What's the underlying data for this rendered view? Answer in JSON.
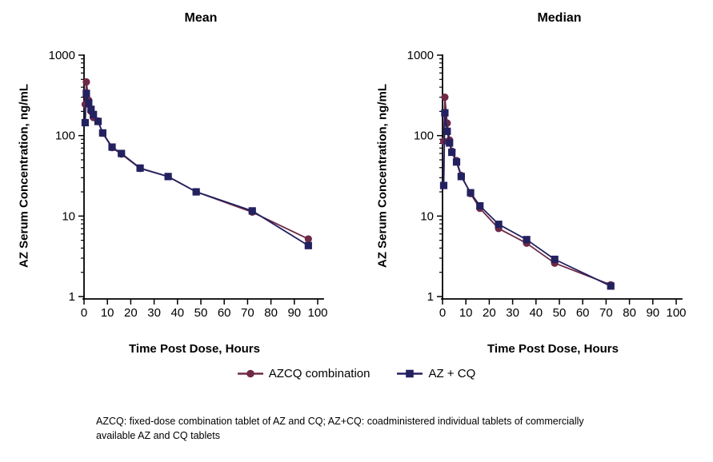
{
  "figure": {
    "ylabel": "AZ Serum Concentration, ng/mL",
    "xlabel": "Time Post Dose, Hours",
    "footnote": [
      "AZCQ: fixed-dose combination tablet of AZ and CQ; AZ+CQ: coadministered individual tablets of commercially",
      "available AZ and CQ tablets"
    ],
    "background_color": "#ffffff",
    "text_color": "#000000"
  },
  "legend": {
    "position": "bottom-center",
    "items": [
      {
        "label": "AZCQ combination",
        "marker": "circle",
        "color": "#6e2946"
      },
      {
        "label": "AZ + CQ",
        "marker": "square",
        "color": "#23215f"
      }
    ]
  },
  "chart_data": [
    {
      "type": "line",
      "title": "Mean",
      "xlabel": "Time Post Dose, Hours",
      "ylabel": "AZ Serum Concentration, ng/mL",
      "yscale": "log",
      "xlim": [
        0,
        100
      ],
      "ylim": [
        1,
        1000
      ],
      "x_ticks": [
        0,
        10,
        20,
        30,
        40,
        50,
        60,
        70,
        80,
        90,
        100
      ],
      "y_ticks": [
        1,
        10,
        100,
        1000
      ],
      "grid": false,
      "series": [
        {
          "name": "AZCQ combination",
          "marker": "circle",
          "color": "#6e2946",
          "x": [
            0.5,
            1,
            2,
            3,
            4,
            6,
            8,
            12,
            16,
            24,
            36,
            48,
            72,
            96
          ],
          "y": [
            245,
            465,
            275,
            200,
            168,
            152,
            107,
            71,
            59,
            39,
            31,
            20,
            11.2,
            5.2
          ]
        },
        {
          "name": "AZ + CQ",
          "marker": "square",
          "color": "#23215f",
          "x": [
            0.5,
            1,
            2,
            3,
            4,
            6,
            8,
            12,
            16,
            24,
            36,
            48,
            72,
            96
          ],
          "y": [
            145,
            335,
            255,
            212,
            183,
            150,
            108,
            72,
            60,
            39.5,
            31,
            20,
            11.6,
            4.3
          ]
        }
      ]
    },
    {
      "type": "line",
      "title": "Median",
      "xlabel": "Time Post Dose, Hours",
      "ylabel": "AZ Serum Concentration, ng/mL",
      "yscale": "log",
      "xlim": [
        0,
        100
      ],
      "ylim": [
        1,
        1000
      ],
      "x_ticks": [
        0,
        10,
        20,
        30,
        40,
        50,
        60,
        70,
        80,
        90,
        100
      ],
      "y_ticks": [
        1,
        10,
        100,
        1000
      ],
      "grid": false,
      "series": [
        {
          "name": "AZCQ combination",
          "marker": "circle",
          "color": "#6e2946",
          "x": [
            0.5,
            1,
            2,
            3,
            4,
            6,
            8,
            12,
            16,
            24,
            36,
            48,
            72
          ],
          "y": [
            85,
            300,
            143,
            88,
            64,
            49,
            32,
            19,
            12.5,
            7,
            4.6,
            2.6,
            1.4
          ]
        },
        {
          "name": "AZ + CQ",
          "marker": "square",
          "color": "#23215f",
          "x": [
            0.5,
            1,
            2,
            3,
            4,
            6,
            8,
            12,
            16,
            24,
            36,
            48,
            72
          ],
          "y": [
            24,
            192,
            113,
            81,
            62,
            47,
            31,
            19.5,
            13.4,
            7.9,
            5.1,
            2.9,
            1.35
          ]
        }
      ]
    }
  ]
}
